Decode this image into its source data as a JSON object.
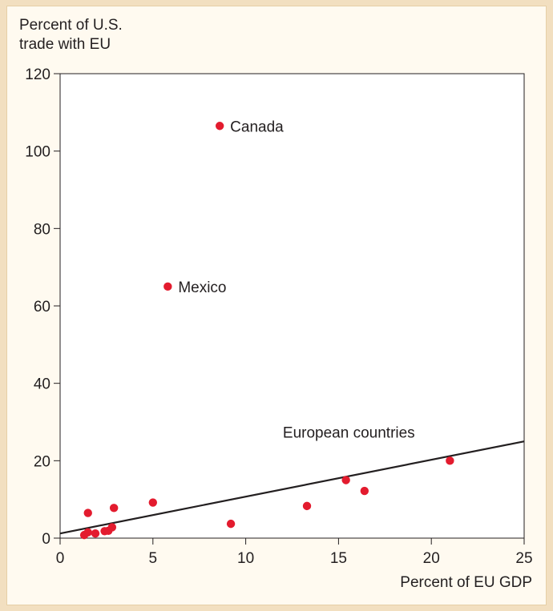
{
  "chart_data": {
    "type": "scatter",
    "title": "",
    "ylabel_lines": [
      "Percent of U.S.",
      "trade with EU"
    ],
    "xlabel": "Percent of EU GDP",
    "xlim": [
      0,
      25
    ],
    "ylim": [
      0,
      120
    ],
    "x_ticks": [
      0,
      5,
      10,
      15,
      20,
      25
    ],
    "y_ticks": [
      0,
      20,
      40,
      60,
      80,
      100,
      120
    ],
    "grid": false,
    "colors": {
      "point": "#e31b2e",
      "line": "#231f20",
      "text": "#231f20"
    },
    "points": [
      {
        "x": 8.6,
        "y": 106.5,
        "label": "Canada"
      },
      {
        "x": 5.8,
        "y": 65.0,
        "label": "Mexico"
      },
      {
        "x": 1.5,
        "y": 6.5
      },
      {
        "x": 2.9,
        "y": 7.8
      },
      {
        "x": 5.0,
        "y": 9.2
      },
      {
        "x": 1.3,
        "y": 0.8
      },
      {
        "x": 1.5,
        "y": 1.5
      },
      {
        "x": 1.9,
        "y": 1.2
      },
      {
        "x": 2.4,
        "y": 1.8
      },
      {
        "x": 2.6,
        "y": 1.9
      },
      {
        "x": 2.8,
        "y": 2.8
      },
      {
        "x": 9.2,
        "y": 3.7
      },
      {
        "x": 13.3,
        "y": 8.3
      },
      {
        "x": 15.4,
        "y": 15.0
      },
      {
        "x": 16.4,
        "y": 12.2
      },
      {
        "x": 21.0,
        "y": 20.0
      }
    ],
    "trend_line": {
      "x": [
        0,
        25
      ],
      "y": [
        1.2,
        25.0
      ]
    },
    "annotations": [
      {
        "text": "European countries",
        "x": 12.0,
        "y": 26.0
      }
    ]
  }
}
